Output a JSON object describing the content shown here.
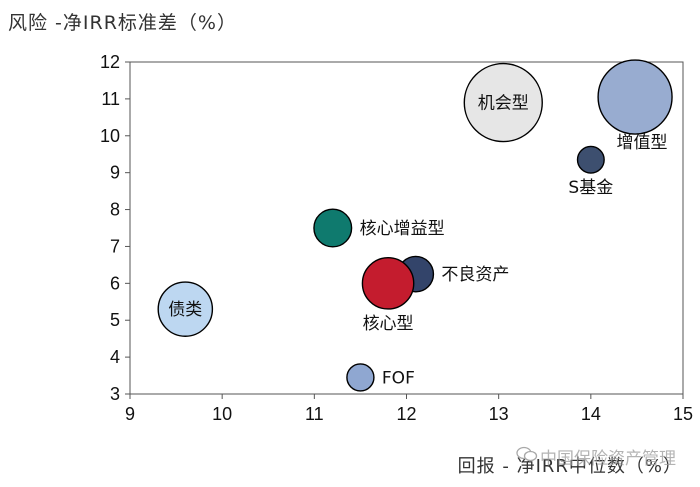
{
  "chart_data": {
    "type": "scatter",
    "subtype": "bubble",
    "ylabel": "风险 -净IRR标准差（%）",
    "xlabel": "回报 - 净IRR中位数（%）",
    "xlim": [
      9,
      15
    ],
    "ylim": [
      3,
      12
    ],
    "x_ticks": [
      9,
      10,
      11,
      12,
      13,
      14,
      15
    ],
    "y_ticks": [
      3,
      4,
      5,
      6,
      7,
      8,
      9,
      10,
      11,
      12
    ],
    "grid": false,
    "legend": "none",
    "points": [
      {
        "label": "机会型",
        "x": 13.05,
        "y": 10.9,
        "size": 3.0,
        "color": "#e6e6e6",
        "label_pos": "center"
      },
      {
        "label": "增值型",
        "x": 14.48,
        "y": 11.05,
        "size": 2.7,
        "color": "#98acd0",
        "label_pos": "below-right"
      },
      {
        "label": "S基金",
        "x": 14.0,
        "y": 9.35,
        "size": 0.35,
        "color": "#3d4f6f",
        "label_pos": "below"
      },
      {
        "label": "核心增益型",
        "x": 11.2,
        "y": 7.5,
        "size": 0.7,
        "color": "#0f7a6e",
        "label_pos": "right"
      },
      {
        "label": "不良资产",
        "x": 12.1,
        "y": 6.25,
        "size": 0.62,
        "color": "#33446a",
        "label_pos": "right"
      },
      {
        "label": "核心型",
        "x": 11.8,
        "y": 6.0,
        "size": 1.3,
        "color": "#c41c2e",
        "label_pos": "below"
      },
      {
        "label": "债类",
        "x": 9.6,
        "y": 5.3,
        "size": 1.45,
        "color": "#bdd7f1",
        "label_pos": "center"
      },
      {
        "label": "FOF",
        "x": 11.5,
        "y": 3.45,
        "size": 0.36,
        "color": "#8fa7d1",
        "label_pos": "right"
      }
    ]
  },
  "watermark": "中国保险资产管理",
  "watermark_icon": "wechat-icon"
}
